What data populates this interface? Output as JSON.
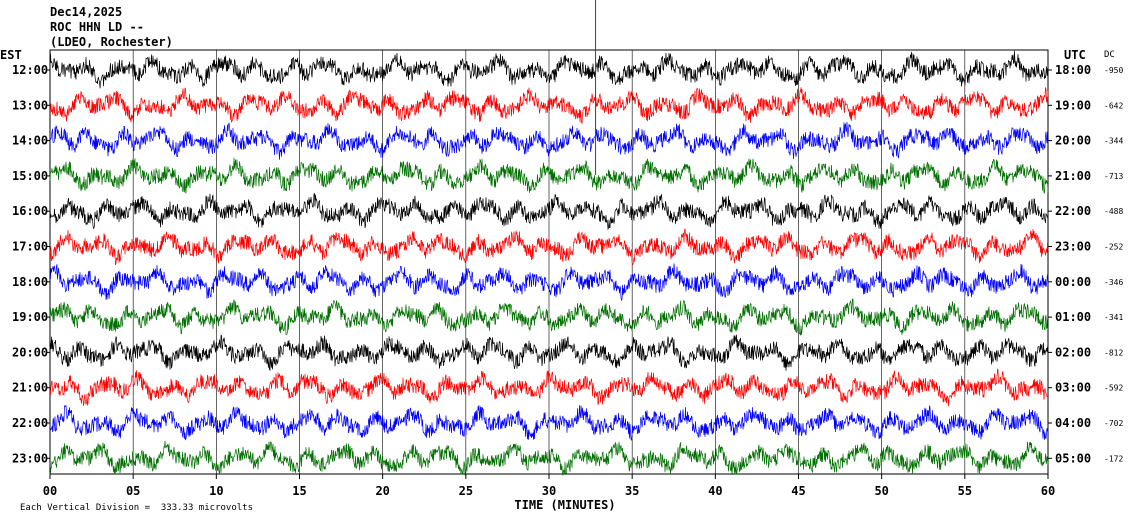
{
  "header": {
    "date": "Dec14,2025",
    "station": "ROC HHN LD --",
    "network": "(LDEO, Rochester)"
  },
  "left_axis_label": "EST",
  "right_axis_label": "UTC",
  "dc_label": "DC",
  "footer_note": "Each Vertical Division =  333.33 microvolts",
  "chart_data": {
    "type": "line",
    "subtype": "helicorder-seismogram",
    "xlabel": "TIME (MINUTES)",
    "xlim": [
      0,
      60
    ],
    "x_ticks": [
      "00",
      "05",
      "10",
      "15",
      "20",
      "25",
      "30",
      "35",
      "40",
      "45",
      "50",
      "55",
      "60"
    ],
    "trace_colors": [
      "#000000",
      "#ff0000",
      "#0000ff",
      "#007000"
    ],
    "rows": [
      {
        "est": "12:00",
        "utc": "18:00",
        "dc": "-950"
      },
      {
        "est": "13:00",
        "utc": "19:00",
        "dc": "-642"
      },
      {
        "est": "14:00",
        "utc": "20:00",
        "dc": "-344"
      },
      {
        "est": "15:00",
        "utc": "21:00",
        "dc": "-713"
      },
      {
        "est": "16:00",
        "utc": "22:00",
        "dc": "-488"
      },
      {
        "est": "17:00",
        "utc": "23:00",
        "dc": "-252"
      },
      {
        "est": "18:00",
        "utc": "00:00",
        "dc": "-346"
      },
      {
        "est": "19:00",
        "utc": "01:00",
        "dc": "-341"
      },
      {
        "est": "20:00",
        "utc": "02:00",
        "dc": "-812"
      },
      {
        "est": "21:00",
        "utc": "03:00",
        "dc": "-592"
      },
      {
        "est": "22:00",
        "utc": "04:00",
        "dc": "-702"
      },
      {
        "est": "23:00",
        "utc": "05:00",
        "dc": "-172"
      }
    ],
    "marker_minute": 32.8,
    "grid": true
  }
}
